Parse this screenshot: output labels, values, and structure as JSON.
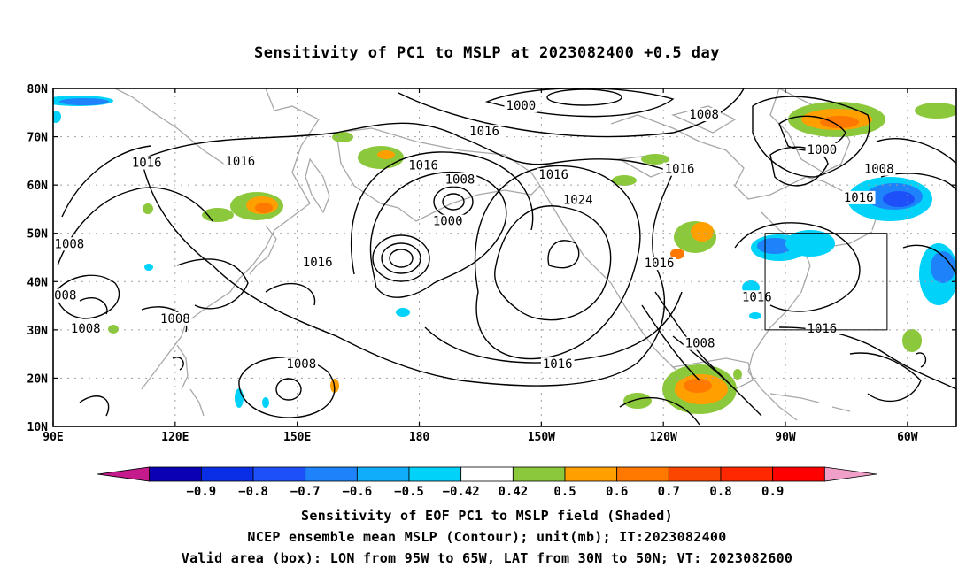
{
  "title": "Sensitivity of PC1 to MSLP at 2023082400 +0.5 day",
  "axes": {
    "lat_labels": [
      "80N",
      "70N",
      "60N",
      "50N",
      "40N",
      "30N",
      "20N",
      "10N"
    ],
    "lat_values": [
      80,
      70,
      60,
      50,
      40,
      30,
      20,
      10
    ],
    "lon_labels": [
      "90E",
      "120E",
      "150E",
      "180",
      "150W",
      "120W",
      "90W",
      "60W"
    ],
    "lon_values": [
      90,
      120,
      150,
      180,
      210,
      240,
      270,
      300
    ],
    "lon_range_east_deg": [
      90,
      312
    ],
    "lat_range": [
      10,
      80
    ]
  },
  "contour_labels": [
    {
      "text": "1000",
      "lon": 205,
      "lat": 76.3
    },
    {
      "text": "1008",
      "lon": 250,
      "lat": 74.5
    },
    {
      "text": "1016",
      "lon": 196,
      "lat": 71
    },
    {
      "text": "1016",
      "lon": 113,
      "lat": 64.5
    },
    {
      "text": "1016",
      "lon": 136,
      "lat": 64.8
    },
    {
      "text": "1016",
      "lon": 181,
      "lat": 64
    },
    {
      "text": "1008",
      "lon": 190,
      "lat": 61
    },
    {
      "text": "1016",
      "lon": 213,
      "lat": 62
    },
    {
      "text": "1016",
      "lon": 244,
      "lat": 63.2
    },
    {
      "text": "1000",
      "lon": 279,
      "lat": 67.2
    },
    {
      "text": "1008",
      "lon": 293,
      "lat": 63.2
    },
    {
      "text": "1024",
      "lon": 219,
      "lat": 56.8
    },
    {
      "text": "1016",
      "lon": 288,
      "lat": 57.3
    },
    {
      "text": "1000",
      "lon": 187,
      "lat": 52.4
    },
    {
      "text": "1008",
      "lon": 94,
      "lat": 47.7
    },
    {
      "text": "1016",
      "lon": 155,
      "lat": 43.9
    },
    {
      "text": "1016",
      "lon": 239,
      "lat": 43.7
    },
    {
      "text": "008",
      "lon": 93,
      "lat": 37
    },
    {
      "text": "1016",
      "lon": 263,
      "lat": 36.7
    },
    {
      "text": "1008",
      "lon": 120,
      "lat": 32.2
    },
    {
      "text": "1008",
      "lon": 98,
      "lat": 30.2
    },
    {
      "text": "1016",
      "lon": 279,
      "lat": 30.2
    },
    {
      "text": "1008",
      "lon": 249,
      "lat": 27.1
    },
    {
      "text": "1016",
      "lon": 214,
      "lat": 22.8
    },
    {
      "text": "1008",
      "lon": 151,
      "lat": 22.8
    }
  ],
  "box": {
    "lon_min": 265,
    "lon_max": 295,
    "lat_min": 30,
    "lat_max": 50
  },
  "colorbar": {
    "colors": [
      "#c41a8c",
      "#0c00b4",
      "#0a2ee6",
      "#1e50fa",
      "#1e82fa",
      "#10aefa",
      "#00d2fa",
      "#ffffff",
      "#8cc83c",
      "#ffa000",
      "#ff7800",
      "#fa4600",
      "#ff2800",
      "#ff0000",
      "#f0a0c8"
    ],
    "labels": [
      "−0.9",
      "−0.8",
      "−0.7",
      "−0.6",
      "−0.5",
      "−0.42",
      "0.42",
      "0.5",
      "0.6",
      "0.7",
      "0.8",
      "0.9"
    ]
  },
  "colors": {
    "frame": "#000000",
    "coast": "#a8a8a8",
    "grid": "#a0a0a0",
    "contour": "#000000"
  },
  "footer": {
    "line1": "Sensitivity of EOF PC1 to MSLP field (Shaded)",
    "line2": "NCEP ensemble mean MSLP (Contour); unit(mb); IT:2023082400",
    "line3": "Valid area (box): LON from 95W to 65W, LAT from 30N to 50N; VT: 2023082600"
  }
}
